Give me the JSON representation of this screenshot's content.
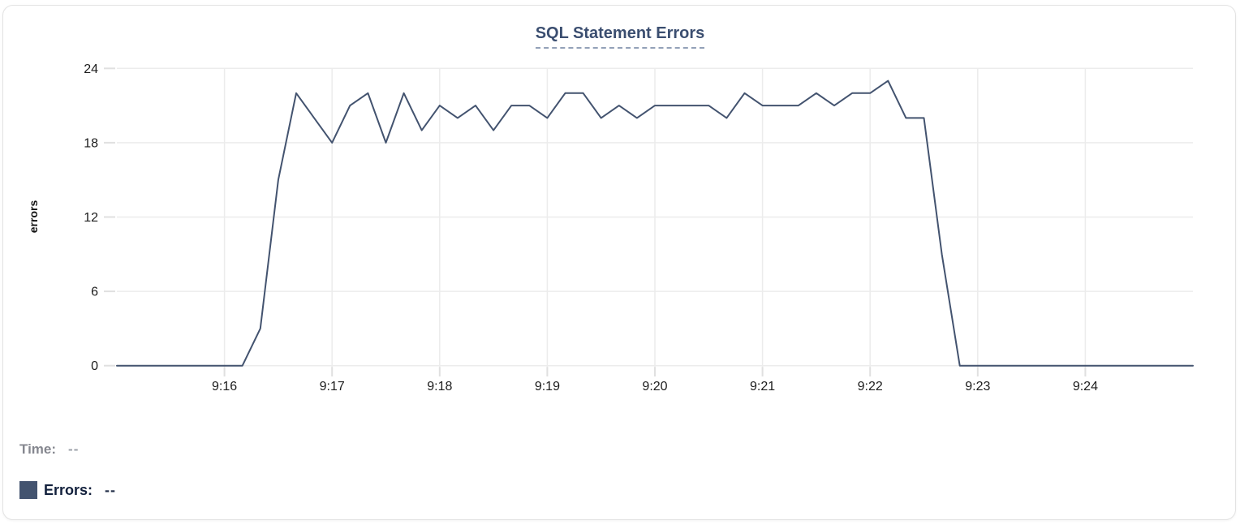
{
  "panel": {
    "title": "SQL Statement Errors"
  },
  "legend": {
    "time_label": "Time:",
    "time_value": "--",
    "errors_label": "Errors:",
    "errors_value": "--"
  },
  "chart_data": {
    "type": "line",
    "title": "SQL Statement Errors",
    "xlabel": "",
    "ylabel": "errors",
    "x_start_time": "9:15:00",
    "x_end_time": "9:25:00",
    "step_seconds": 10,
    "x_tick_labels": [
      "9:16",
      "9:17",
      "9:18",
      "9:19",
      "9:20",
      "9:21",
      "9:22",
      "9:23",
      "9:24"
    ],
    "x_tick_seconds": [
      60,
      120,
      180,
      240,
      300,
      360,
      420,
      480,
      540
    ],
    "y_ticks": [
      0,
      6,
      12,
      18,
      24
    ],
    "ylim": [
      0,
      24
    ],
    "grid": true,
    "legend_position": "bottom-left",
    "series": [
      {
        "name": "Errors",
        "color": "#43536f",
        "values": [
          0,
          0,
          0,
          0,
          0,
          0,
          0,
          0,
          3,
          15,
          22,
          20,
          18,
          21,
          22,
          18,
          22,
          19,
          21,
          20,
          21,
          19,
          21,
          21,
          20,
          22,
          22,
          20,
          21,
          20,
          21,
          21,
          21,
          21,
          20,
          22,
          21,
          21,
          21,
          22,
          21,
          22,
          22,
          23,
          20,
          20,
          9,
          0,
          0,
          0,
          0,
          0,
          0,
          0,
          0,
          0,
          0,
          0,
          0,
          0,
          0
        ]
      }
    ],
    "colors": {
      "grid": "#ececec",
      "axis_tick": "#e0e0e0",
      "tick_text": "#1c1c1c",
      "title_text": "#3b4e70",
      "title_underline": "#93a1b8"
    }
  }
}
